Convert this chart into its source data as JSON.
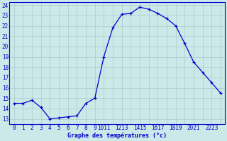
{
  "hours": [
    0,
    1,
    2,
    3,
    4,
    5,
    6,
    7,
    8,
    9,
    10,
    11,
    12,
    13,
    14,
    15,
    16,
    17,
    18,
    19,
    20,
    21,
    22,
    23
  ],
  "temperatures": [
    14.5,
    14.5,
    14.8,
    14.1,
    13.0,
    13.1,
    13.2,
    13.3,
    14.5,
    15.0,
    19.0,
    21.8,
    23.1,
    23.2,
    23.8,
    23.6,
    23.2,
    22.7,
    22.0,
    20.3,
    18.5,
    17.5,
    16.5,
    15.5
  ],
  "line_color": "#0000cc",
  "marker": "+",
  "bg_color": "#cce8e8",
  "grid_color": "#aacccc",
  "xlabel": "Graphe des températures (°c)",
  "xlabel_color": "#0000cc",
  "xtick_labels": [
    "0",
    "1",
    "2",
    "3",
    "4",
    "5",
    "6",
    "7",
    "8",
    "9",
    "1011",
    "1213",
    "1415",
    "1617",
    "1819",
    "2021",
    "2223"
  ],
  "ytick_labels": [
    "13",
    "14",
    "15",
    "16",
    "17",
    "18",
    "19",
    "20",
    "21",
    "22",
    "23",
    "24"
  ],
  "ytick_positions": [
    13,
    14,
    15,
    16,
    17,
    18,
    19,
    20,
    21,
    22,
    23,
    24
  ],
  "xlim": [
    -0.5,
    23.5
  ],
  "ylim": [
    12.5,
    24.3
  ],
  "tick_label_color": "#0000cc",
  "tick_label_size": 5.5,
  "xlabel_size": 6.0
}
